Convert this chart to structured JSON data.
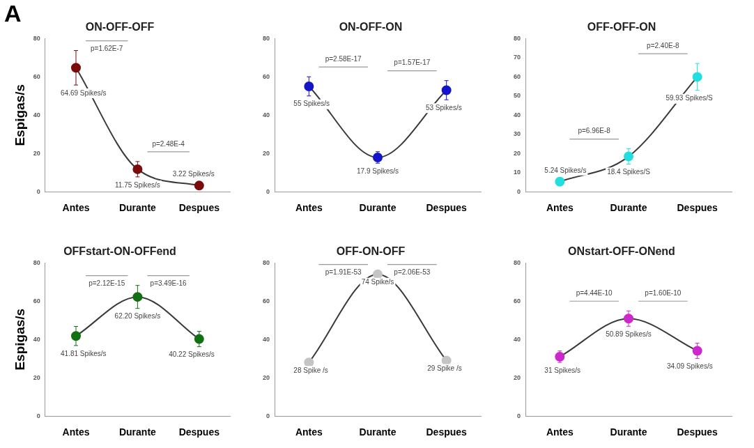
{
  "chart_data": [
    {
      "type": "line",
      "title": "ON-OFF-OFF",
      "ylabel": "Espigas/s",
      "categories": [
        "Antes",
        "Durante",
        "Despues"
      ],
      "series": [
        {
          "color": "#7a0c0c",
          "values": [
            64.69,
            11.75,
            3.22
          ],
          "errors": [
            9,
            4,
            null
          ],
          "value_labels": [
            "64.69 Spikes/s",
            "11.75 Spikes/s",
            "3.22 Spikes/s"
          ]
        }
      ],
      "ylim": [
        0,
        80
      ],
      "yticks": [
        0,
        20,
        40,
        60,
        80
      ],
      "annotations": [
        "A",
        "p=1.62E-7",
        "p=2.48E-4"
      ],
      "marker": "circle",
      "grid": false,
      "legend": false
    },
    {
      "type": "line",
      "title": "ON-OFF-ON",
      "categories": [
        "Antes",
        "Durante",
        "Despues"
      ],
      "series": [
        {
          "color": "#1414c8",
          "values": [
            55,
            17.9,
            53
          ],
          "errors": [
            5,
            3,
            5
          ],
          "value_labels": [
            "55 Spikes/s",
            "17.9 Spikes/s",
            "53 Spikes/s"
          ]
        }
      ],
      "ylim": [
        0,
        80
      ],
      "yticks": [
        0,
        20,
        40,
        60,
        80
      ],
      "annotations": [
        "p=2.58E-17",
        "p=1.57E-17"
      ],
      "marker": "circle",
      "grid": false,
      "legend": false
    },
    {
      "type": "line",
      "title": "OFF-OFF-ON",
      "categories": [
        "Antes",
        "Durante",
        "Despues"
      ],
      "series": [
        {
          "color": "#22dede",
          "values": [
            5.24,
            18.4,
            59.93
          ],
          "errors": [
            null,
            4,
            7
          ],
          "value_labels": [
            "5.24 Spikes/s",
            "18.4 Spikes/S",
            "59.93 Spikes/S"
          ]
        }
      ],
      "ylim": [
        0,
        80
      ],
      "yticks": [
        0,
        10,
        20,
        30,
        40,
        50,
        60,
        70,
        80
      ],
      "annotations": [
        "p=6.96E-8",
        "p=2.40E-8"
      ],
      "marker": "circle",
      "grid": false,
      "legend": false
    },
    {
      "type": "line",
      "title": "OFFstart-ON-OFFend",
      "ylabel": "Espigas/s",
      "categories": [
        "Antes",
        "Durante",
        "Despues"
      ],
      "series": [
        {
          "color": "#127012",
          "values": [
            41.81,
            62.2,
            40.22
          ],
          "errors": [
            5,
            6,
            4
          ],
          "value_labels": [
            "41.81 Spikes/s",
            "62.20 Spikes/s",
            "40.22 Spikes/s"
          ]
        }
      ],
      "ylim": [
        0,
        80
      ],
      "yticks": [
        0,
        20,
        40,
        60,
        80
      ],
      "annotations": [
        "p=2.12E-15",
        "p=3.49E-16"
      ],
      "marker": "circle",
      "grid": false,
      "legend": false
    },
    {
      "type": "line",
      "title": "OFF-ON-OFF",
      "categories": [
        "Antes",
        "Durante",
        "Despues"
      ],
      "series": [
        {
          "color": "#c4c4c4",
          "values": [
            28,
            74,
            29
          ],
          "value_labels": [
            "28 Spike /s",
            "74 Spike/s",
            "29 Spike /s"
          ]
        }
      ],
      "ylim": [
        0,
        80
      ],
      "yticks": [
        0,
        20,
        40,
        60,
        80
      ],
      "annotations": [
        "p=1.91E-53",
        "p=2.06E-53"
      ],
      "marker": "circle",
      "grid": false,
      "legend": false
    },
    {
      "type": "line",
      "title": "ONstart-OFF-ONend",
      "categories": [
        "Antes",
        "Durante",
        "Despues"
      ],
      "series": [
        {
          "color": "#cc28cc",
          "values": [
            31,
            50.89,
            34.09
          ],
          "errors": [
            3,
            4,
            4
          ],
          "value_labels": [
            "31 Spikes/s",
            "50.89 Spikes/s",
            "34.09 Spikes/s"
          ]
        }
      ],
      "ylim": [
        0,
        80
      ],
      "yticks": [
        0,
        20,
        40,
        60,
        80
      ],
      "annotations": [
        "p=4.44E-10",
        "p=1.60E-10"
      ],
      "marker": "circle",
      "grid": false,
      "legend": false
    }
  ]
}
